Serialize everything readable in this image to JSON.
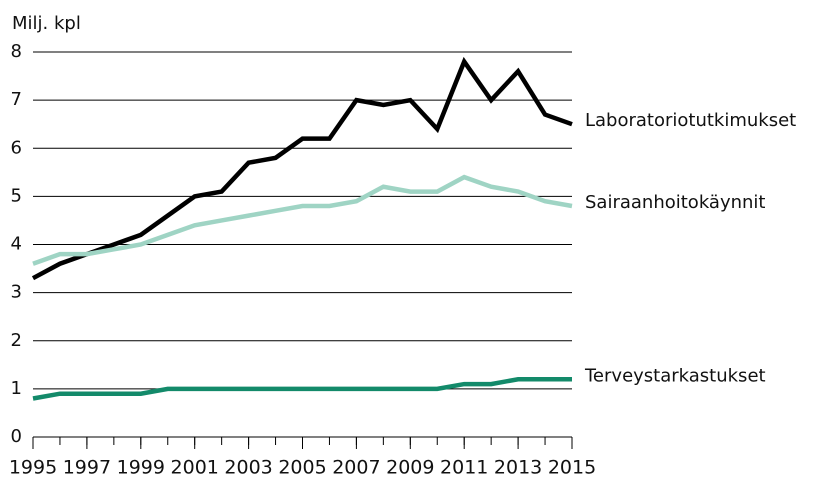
{
  "chart_data": {
    "type": "line",
    "ylabel": "Milj. kpl",
    "x": [
      1995,
      1996,
      1997,
      1998,
      1999,
      2000,
      2001,
      2002,
      2003,
      2004,
      2005,
      2006,
      2007,
      2008,
      2009,
      2010,
      2011,
      2012,
      2013,
      2014,
      2015
    ],
    "series": [
      {
        "name": "Laboratoriotutkimukset",
        "color": "#000000",
        "values": [
          3.3,
          3.6,
          3.8,
          4.0,
          4.2,
          4.6,
          5.0,
          5.1,
          5.7,
          5.8,
          6.2,
          6.2,
          7.0,
          6.9,
          7.0,
          6.4,
          7.8,
          7.0,
          7.6,
          6.7,
          6.5
        ]
      },
      {
        "name": "Sairaanhoitokäynnit",
        "color": "#9fd4c4",
        "values": [
          3.6,
          3.8,
          3.8,
          3.9,
          4.0,
          4.2,
          4.4,
          4.5,
          4.6,
          4.7,
          4.8,
          4.8,
          4.9,
          5.2,
          5.1,
          5.1,
          5.4,
          5.2,
          5.1,
          4.9,
          4.8
        ]
      },
      {
        "name": "Terveystarkastukset",
        "color": "#138a6a",
        "values": [
          0.8,
          0.9,
          0.9,
          0.9,
          0.9,
          1.0,
          1.0,
          1.0,
          1.0,
          1.0,
          1.0,
          1.0,
          1.0,
          1.0,
          1.0,
          1.0,
          1.1,
          1.1,
          1.2,
          1.2,
          1.2
        ]
      }
    ],
    "xlim": [
      1995,
      2015
    ],
    "xticks": [
      1995,
      1997,
      1999,
      2001,
      2003,
      2005,
      2007,
      2009,
      2011,
      2013,
      2015
    ],
    "ylim": [
      0,
      8
    ],
    "yticks": [
      0,
      1,
      2,
      3,
      4,
      5,
      6,
      7,
      8
    ],
    "grid": true
  }
}
